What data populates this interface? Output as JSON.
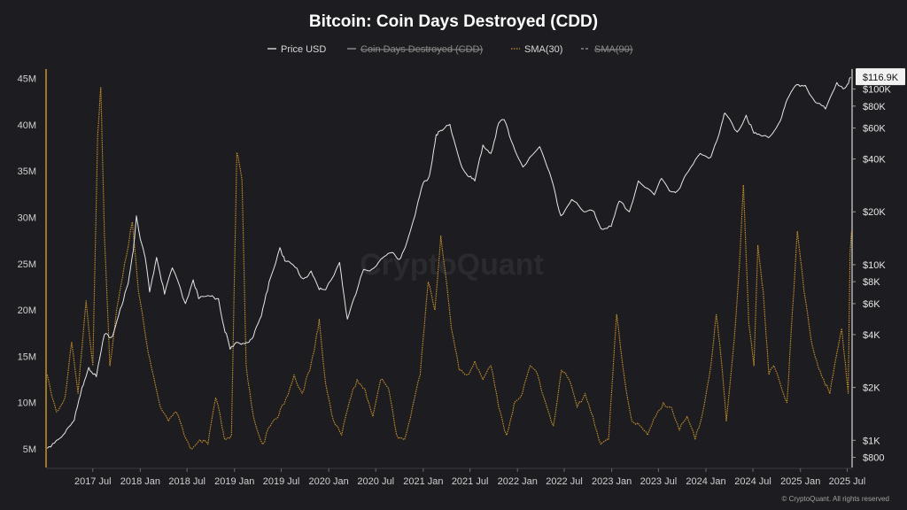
{
  "chart_data": {
    "type": "line",
    "title": "Bitcoin: Coin Days Destroyed (CDD)",
    "legend": [
      {
        "name": "Price USD",
        "color": "#e6e6e6",
        "style": "solid",
        "enabled": true
      },
      {
        "name": "Coin Days Destroyed (CDD)",
        "color": "#9a9a9a",
        "style": "solid",
        "enabled": false
      },
      {
        "name": "SMA(30)",
        "color": "#c9922a",
        "style": "dotted",
        "enabled": true
      },
      {
        "name": "SMA(90)",
        "color": "#9a9a9a",
        "style": "dashed",
        "enabled": false
      }
    ],
    "x_ticks": [
      "2017 Jul",
      "2018 Jan",
      "2018 Jul",
      "2019 Jan",
      "2019 Jul",
      "2020 Jan",
      "2020 Jul",
      "2021 Jan",
      "2021 Jul",
      "2022 Jan",
      "2022 Jul",
      "2023 Jan",
      "2023 Jul",
      "2024 Jan",
      "2024 Jul",
      "2025 Jan",
      "2025 Jul"
    ],
    "x_range": [
      "2017-01-01",
      "2025-07-20"
    ],
    "y_left_ticks": [
      {
        "label": "5M",
        "value": 5000000
      },
      {
        "label": "10M",
        "value": 10000000
      },
      {
        "label": "15M",
        "value": 15000000
      },
      {
        "label": "20M",
        "value": 20000000
      },
      {
        "label": "25M",
        "value": 25000000
      },
      {
        "label": "30M",
        "value": 30000000
      },
      {
        "label": "35M",
        "value": 35000000
      },
      {
        "label": "40M",
        "value": 40000000
      },
      {
        "label": "45M",
        "value": 45000000
      }
    ],
    "y_left_range": [
      3000000,
      46000000
    ],
    "y_right_scale": "log",
    "y_right_ticks": [
      {
        "label": "$800",
        "value": 800
      },
      {
        "label": "$1K",
        "value": 1000
      },
      {
        "label": "$2K",
        "value": 2000
      },
      {
        "label": "$4K",
        "value": 4000
      },
      {
        "label": "$6K",
        "value": 6000
      },
      {
        "label": "$8K",
        "value": 8000
      },
      {
        "label": "$10K",
        "value": 10000
      },
      {
        "label": "$20K",
        "value": 20000
      },
      {
        "label": "$40K",
        "value": 40000
      },
      {
        "label": "$60K",
        "value": 60000
      },
      {
        "label": "$80K",
        "value": 80000
      },
      {
        "label": "$100K",
        "value": 100000
      }
    ],
    "y_right_range": [
      700,
      130000
    ],
    "current_price_label": "$116.9K",
    "current_price_value": 116900,
    "watermark": "CryptoQuant",
    "credit": "© CryptoQuant. All rights reserved",
    "series": [
      {
        "name": "Price USD",
        "axis": "right",
        "points": [
          [
            "2017-01-05",
            900
          ],
          [
            "2017-02-10",
            1000
          ],
          [
            "2017-03-15",
            1100
          ],
          [
            "2017-04-20",
            1300
          ],
          [
            "2017-05-20",
            2000
          ],
          [
            "2017-06-15",
            2600
          ],
          [
            "2017-07-15",
            2300
          ],
          [
            "2017-08-15",
            4000
          ],
          [
            "2017-09-15",
            3900
          ],
          [
            "2017-10-15",
            5600
          ],
          [
            "2017-11-15",
            7800
          ],
          [
            "2017-12-05",
            12000
          ],
          [
            "2017-12-17",
            19000
          ],
          [
            "2018-01-01",
            14000
          ],
          [
            "2018-01-20",
            11000
          ],
          [
            "2018-02-06",
            7000
          ],
          [
            "2018-03-05",
            11000
          ],
          [
            "2018-04-05",
            6800
          ],
          [
            "2018-05-05",
            9600
          ],
          [
            "2018-06-25",
            6000
          ],
          [
            "2018-07-25",
            8200
          ],
          [
            "2018-08-15",
            6400
          ],
          [
            "2018-09-30",
            6600
          ],
          [
            "2018-10-31",
            6400
          ],
          [
            "2018-11-20",
            4500
          ],
          [
            "2018-12-15",
            3300
          ],
          [
            "2019-01-15",
            3600
          ],
          [
            "2019-02-15",
            3600
          ],
          [
            "2019-03-15",
            3900
          ],
          [
            "2019-04-15",
            5100
          ],
          [
            "2019-05-15",
            8000
          ],
          [
            "2019-06-26",
            12500
          ],
          [
            "2019-07-15",
            10500
          ],
          [
            "2019-08-15",
            10000
          ],
          [
            "2019-09-25",
            8300
          ],
          [
            "2019-10-25",
            9200
          ],
          [
            "2019-11-25",
            7200
          ],
          [
            "2019-12-20",
            7200
          ],
          [
            "2020-02-12",
            10300
          ],
          [
            "2020-03-13",
            4900
          ],
          [
            "2020-04-15",
            6800
          ],
          [
            "2020-05-15",
            9400
          ],
          [
            "2020-06-15",
            9400
          ],
          [
            "2020-07-30",
            11000
          ],
          [
            "2020-08-30",
            11700
          ],
          [
            "2020-09-30",
            10700
          ],
          [
            "2020-10-30",
            13500
          ],
          [
            "2020-11-30",
            19000
          ],
          [
            "2020-12-31",
            29000
          ],
          [
            "2021-01-25",
            32000
          ],
          [
            "2021-02-20",
            55000
          ],
          [
            "2021-03-15",
            58000
          ],
          [
            "2021-04-14",
            63000
          ],
          [
            "2021-05-25",
            38000
          ],
          [
            "2021-06-22",
            32000
          ],
          [
            "2021-07-20",
            30000
          ],
          [
            "2021-08-20",
            48000
          ],
          [
            "2021-09-20",
            43000
          ],
          [
            "2021-10-20",
            64000
          ],
          [
            "2021-11-10",
            67000
          ],
          [
            "2021-12-15",
            48000
          ],
          [
            "2022-01-22",
            36000
          ],
          [
            "2022-03-28",
            47000
          ],
          [
            "2022-05-15",
            30000
          ],
          [
            "2022-06-18",
            19000
          ],
          [
            "2022-07-30",
            23500
          ],
          [
            "2022-09-15",
            20000
          ],
          [
            "2022-10-25",
            20000
          ],
          [
            "2022-11-21",
            16000
          ],
          [
            "2022-12-30",
            16500
          ],
          [
            "2023-01-30",
            23000
          ],
          [
            "2023-03-10",
            20000
          ],
          [
            "2023-04-14",
            30000
          ],
          [
            "2023-06-15",
            25000
          ],
          [
            "2023-07-13",
            31000
          ],
          [
            "2023-08-20",
            26000
          ],
          [
            "2023-09-15",
            26500
          ],
          [
            "2023-10-25",
            34000
          ],
          [
            "2023-12-10",
            43000
          ],
          [
            "2024-01-20",
            41000
          ],
          [
            "2024-02-28",
            61000
          ],
          [
            "2024-03-14",
            73000
          ],
          [
            "2024-05-01",
            57000
          ],
          [
            "2024-06-05",
            71000
          ],
          [
            "2024-07-05",
            56000
          ],
          [
            "2024-08-05",
            54000
          ],
          [
            "2024-09-06",
            54000
          ],
          [
            "2024-10-15",
            66000
          ],
          [
            "2024-11-12",
            88000
          ],
          [
            "2024-12-17",
            106000
          ],
          [
            "2025-01-20",
            105000
          ],
          [
            "2025-02-28",
            84000
          ],
          [
            "2025-04-08",
            77000
          ],
          [
            "2025-05-22",
            109000
          ],
          [
            "2025-06-22",
            101000
          ],
          [
            "2025-07-15",
            117000
          ]
        ]
      },
      {
        "name": "SMA(30)",
        "axis": "left",
        "points": [
          [
            "2017-01-05",
            13000000
          ],
          [
            "2017-02-10",
            9000000
          ],
          [
            "2017-03-15",
            10500000
          ],
          [
            "2017-04-10",
            16500000
          ],
          [
            "2017-05-05",
            11000000
          ],
          [
            "2017-06-05",
            21000000
          ],
          [
            "2017-07-01",
            14000000
          ],
          [
            "2017-07-20",
            39000000
          ],
          [
            "2017-08-01",
            44000000
          ],
          [
            "2017-08-15",
            28000000
          ],
          [
            "2017-09-05",
            14000000
          ],
          [
            "2017-10-01",
            20000000
          ],
          [
            "2017-11-01",
            25000000
          ],
          [
            "2017-12-01",
            29500000
          ],
          [
            "2017-12-25",
            22000000
          ],
          [
            "2018-01-25",
            16500000
          ],
          [
            "2018-02-20",
            13000000
          ],
          [
            "2018-03-20",
            9500000
          ],
          [
            "2018-04-20",
            8000000
          ],
          [
            "2018-05-20",
            9000000
          ],
          [
            "2018-06-20",
            6500000
          ],
          [
            "2018-07-20",
            5000000
          ],
          [
            "2018-08-20",
            6000000
          ],
          [
            "2018-09-20",
            5500000
          ],
          [
            "2018-10-20",
            10500000
          ],
          [
            "2018-11-10",
            8000000
          ],
          [
            "2018-11-25",
            6000000
          ],
          [
            "2018-12-20",
            6500000
          ],
          [
            "2019-01-10",
            37000000
          ],
          [
            "2019-01-30",
            34000000
          ],
          [
            "2019-02-15",
            14000000
          ],
          [
            "2019-03-15",
            8500000
          ],
          [
            "2019-04-20",
            5500000
          ],
          [
            "2019-05-20",
            7500000
          ],
          [
            "2019-06-20",
            8500000
          ],
          [
            "2019-07-20",
            10500000
          ],
          [
            "2019-08-20",
            13000000
          ],
          [
            "2019-09-20",
            11000000
          ],
          [
            "2019-10-20",
            13500000
          ],
          [
            "2019-11-05",
            15500000
          ],
          [
            "2019-11-25",
            19000000
          ],
          [
            "2019-12-20",
            12000000
          ],
          [
            "2020-01-20",
            8000000
          ],
          [
            "2020-02-20",
            6500000
          ],
          [
            "2020-03-20",
            10000000
          ],
          [
            "2020-04-20",
            12500000
          ],
          [
            "2020-05-20",
            11500000
          ],
          [
            "2020-06-20",
            8500000
          ],
          [
            "2020-07-20",
            12500000
          ],
          [
            "2020-08-20",
            11500000
          ],
          [
            "2020-09-20",
            6500000
          ],
          [
            "2020-10-20",
            6000000
          ],
          [
            "2020-11-20",
            9500000
          ],
          [
            "2020-12-20",
            13000000
          ],
          [
            "2021-01-20",
            23000000
          ],
          [
            "2021-02-15",
            20000000
          ],
          [
            "2021-03-10",
            28000000
          ],
          [
            "2021-03-30",
            23500000
          ],
          [
            "2021-04-20",
            18000000
          ],
          [
            "2021-05-20",
            13500000
          ],
          [
            "2021-06-20",
            13000000
          ],
          [
            "2021-07-20",
            14500000
          ],
          [
            "2021-08-20",
            12500000
          ],
          [
            "2021-09-20",
            14000000
          ],
          [
            "2021-10-20",
            9500000
          ],
          [
            "2021-11-20",
            6500000
          ],
          [
            "2021-12-20",
            10000000
          ],
          [
            "2022-01-20",
            11000000
          ],
          [
            "2022-02-20",
            14000000
          ],
          [
            "2022-03-20",
            13000000
          ],
          [
            "2022-04-20",
            10000000
          ],
          [
            "2022-05-20",
            7500000
          ],
          [
            "2022-06-20",
            13500000
          ],
          [
            "2022-07-20",
            12500000
          ],
          [
            "2022-08-20",
            9500000
          ],
          [
            "2022-09-20",
            11000000
          ],
          [
            "2022-10-20",
            8500000
          ],
          [
            "2022-11-20",
            5500000
          ],
          [
            "2022-12-20",
            6000000
          ],
          [
            "2023-01-20",
            19500000
          ],
          [
            "2023-02-20",
            12500000
          ],
          [
            "2023-03-20",
            8000000
          ],
          [
            "2023-04-20",
            7500000
          ],
          [
            "2023-05-20",
            6500000
          ],
          [
            "2023-06-20",
            8500000
          ],
          [
            "2023-07-20",
            10000000
          ],
          [
            "2023-08-20",
            9500000
          ],
          [
            "2023-09-20",
            7000000
          ],
          [
            "2023-10-20",
            8500000
          ],
          [
            "2023-11-20",
            6000000
          ],
          [
            "2023-12-20",
            9000000
          ],
          [
            "2024-01-20",
            14000000
          ],
          [
            "2024-02-10",
            19500000
          ],
          [
            "2024-02-28",
            15000000
          ],
          [
            "2024-03-20",
            8000000
          ],
          [
            "2024-04-20",
            17000000
          ],
          [
            "2024-05-10",
            25000000
          ],
          [
            "2024-05-25",
            33500000
          ],
          [
            "2024-06-15",
            18500000
          ],
          [
            "2024-07-05",
            14000000
          ],
          [
            "2024-07-20",
            27000000
          ],
          [
            "2024-08-10",
            22000000
          ],
          [
            "2024-09-01",
            13000000
          ],
          [
            "2024-09-20",
            14000000
          ],
          [
            "2024-10-15",
            12000000
          ],
          [
            "2024-11-10",
            10000000
          ],
          [
            "2024-12-01",
            20000000
          ],
          [
            "2024-12-20",
            28500000
          ],
          [
            "2025-01-15",
            22000000
          ],
          [
            "2025-02-10",
            17000000
          ],
          [
            "2025-03-05",
            14500000
          ],
          [
            "2025-04-01",
            12500000
          ],
          [
            "2025-04-25",
            11000000
          ],
          [
            "2025-05-20",
            15000000
          ],
          [
            "2025-06-10",
            18000000
          ],
          [
            "2025-06-25",
            14000000
          ],
          [
            "2025-07-05",
            11000000
          ],
          [
            "2025-07-12",
            26000000
          ],
          [
            "2025-07-18",
            28500000
          ]
        ]
      }
    ]
  }
}
